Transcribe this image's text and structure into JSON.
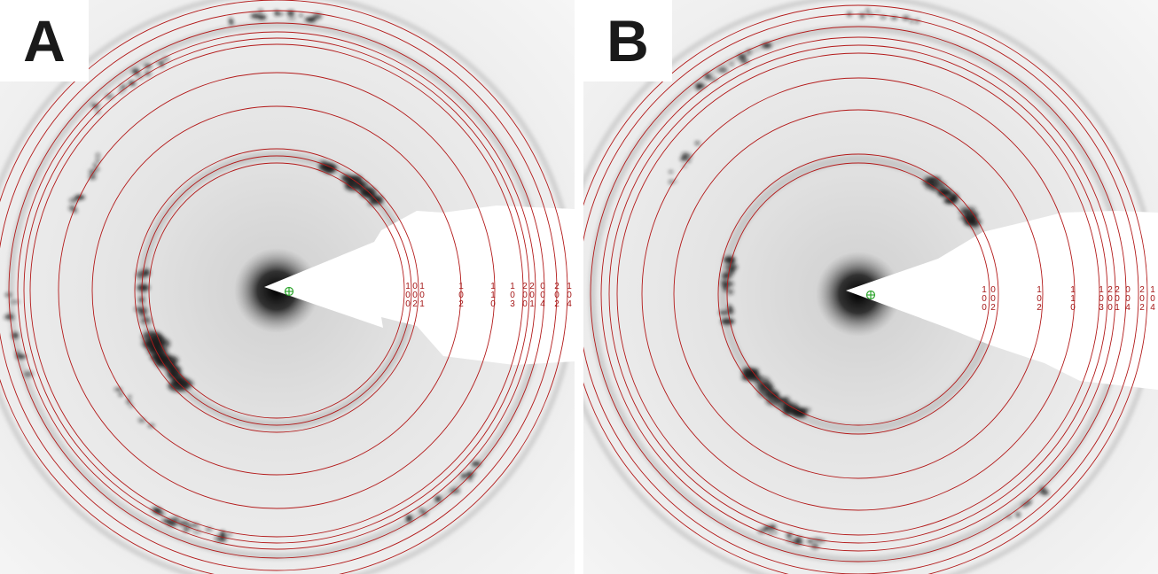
{
  "panels": [
    {
      "letter": "A",
      "ring_labels": [
        [
          "1",
          "0",
          "0"
        ],
        [
          "0",
          "0",
          "2"
        ],
        [
          "1",
          "0",
          "1"
        ],
        [
          "1",
          "0",
          "2"
        ],
        [
          "1",
          "1",
          "0"
        ],
        [
          "1",
          "0",
          "3"
        ],
        [
          "2",
          "0",
          "0"
        ],
        [
          "2",
          "0",
          "1"
        ],
        [
          "0",
          "0",
          "4"
        ],
        [
          "2",
          "0",
          "2"
        ],
        [
          "1",
          "0",
          "4"
        ]
      ]
    },
    {
      "letter": "B",
      "ring_labels": [
        [
          "1",
          "0",
          "0"
        ],
        [
          "0",
          "0",
          "2"
        ],
        [
          "1",
          "0",
          "2"
        ],
        [
          "1",
          "1",
          "0"
        ],
        [
          "1",
          "0",
          "3"
        ],
        [
          "2",
          "0",
          "0"
        ],
        [
          "2",
          "0",
          "1"
        ],
        [
          "0",
          "0",
          "4"
        ],
        [
          "2",
          "0",
          "2"
        ],
        [
          "1",
          "0",
          "4"
        ]
      ]
    }
  ],
  "colors": {
    "ring": "#b31a1a",
    "label": "#a51818",
    "center_marker": "#2fa52f",
    "beam_stop": "#ffffff",
    "film_background": "#f0f0f0",
    "diffraction_spot": "#1c1c1c"
  }
}
